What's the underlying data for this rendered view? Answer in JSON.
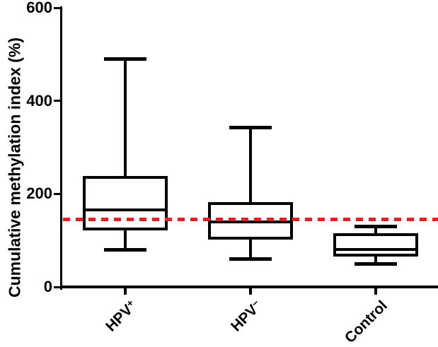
{
  "chart_data": {
    "type": "box",
    "title": "",
    "ylabel": "Cumulative methylation index (%)",
    "xlabel": "",
    "ylim": [
      0,
      600
    ],
    "yticks": [
      0,
      200,
      400,
      600
    ],
    "categories": [
      "HPV+",
      "HPV−",
      "Control"
    ],
    "category_labels": [
      {
        "base": "HPV",
        "sup": "+"
      },
      {
        "base": "HPV",
        "sup": "−"
      },
      {
        "base": "Control",
        "sup": ""
      }
    ],
    "series": [
      {
        "name": "HPV+",
        "whisker_low": 80,
        "q1": 125,
        "median": 165,
        "q3": 235,
        "whisker_high": 490
      },
      {
        "name": "HPV−",
        "whisker_low": 60,
        "q1": 105,
        "median": 140,
        "q3": 180,
        "whisker_high": 343
      },
      {
        "name": "Control",
        "whisker_low": 50,
        "q1": 68,
        "median": 80,
        "q3": 112,
        "whisker_high": 130
      }
    ],
    "reference_line": {
      "value": 145,
      "color": "#ed1c24",
      "style": "dashed"
    },
    "colors": {
      "box_stroke": "#000000",
      "box_fill": "#ffffff",
      "axis": "#000000"
    },
    "grid": false,
    "legend": false
  }
}
